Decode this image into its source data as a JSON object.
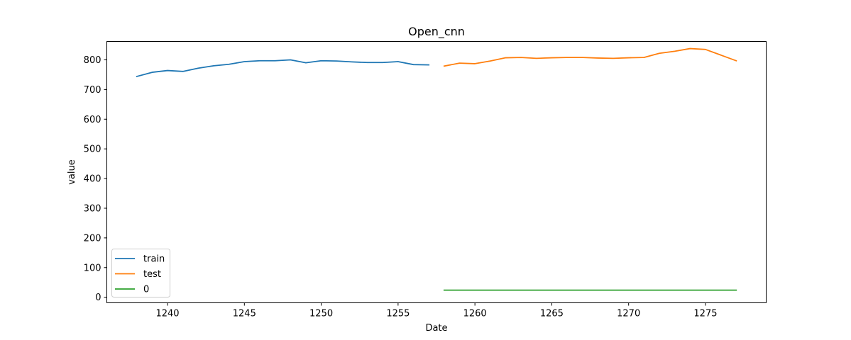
{
  "chart_data": {
    "type": "line",
    "title": "Open_cnn",
    "xlabel": "Date",
    "ylabel": "value",
    "xlim": [
      1236.05,
      1278.95
    ],
    "ylim": [
      -18.7,
      862
    ],
    "xticks": [
      1240,
      1245,
      1250,
      1255,
      1260,
      1265,
      1270,
      1275
    ],
    "yticks": [
      0,
      100,
      200,
      300,
      400,
      500,
      600,
      700,
      800
    ],
    "grid": false,
    "legend_position": "lower-left",
    "series": [
      {
        "name": "train",
        "color": "#1f77b4",
        "x": [
          1238,
          1239,
          1240,
          1241,
          1242,
          1243,
          1244,
          1245,
          1246,
          1247,
          1248,
          1249,
          1250,
          1251,
          1252,
          1253,
          1254,
          1255,
          1256,
          1257
        ],
        "y": [
          744,
          758,
          764,
          761,
          772,
          780,
          785,
          794,
          797,
          797,
          800,
          790,
          797,
          796,
          793,
          791,
          791,
          794,
          784,
          783
        ]
      },
      {
        "name": "test",
        "color": "#ff7f0e",
        "x": [
          1258,
          1259,
          1260,
          1261,
          1262,
          1263,
          1264,
          1265,
          1266,
          1267,
          1268,
          1269,
          1270,
          1271,
          1272,
          1273,
          1274,
          1275,
          1276,
          1277
        ],
        "y": [
          779,
          789,
          787,
          796,
          807,
          808,
          805,
          807,
          808,
          808,
          806,
          805,
          807,
          808,
          822,
          829,
          838,
          835,
          816,
          797
        ]
      },
      {
        "name": "0",
        "color": "#2ca02c",
        "x": [
          1258,
          1259,
          1260,
          1261,
          1262,
          1263,
          1264,
          1265,
          1266,
          1267,
          1268,
          1269,
          1270,
          1271,
          1272,
          1273,
          1274,
          1275,
          1276,
          1277
        ],
        "y": [
          24,
          24,
          24,
          24,
          24,
          24,
          24,
          24,
          24,
          24,
          24,
          24,
          24,
          24,
          24,
          24,
          24,
          24,
          24,
          24
        ]
      }
    ]
  }
}
